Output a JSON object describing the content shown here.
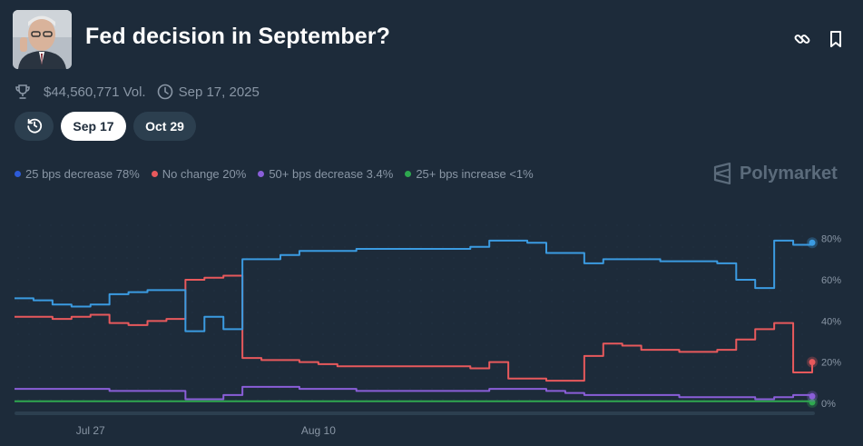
{
  "market": {
    "title": "Fed decision in September?",
    "volume": "$44,560,771 Vol.",
    "end_date": "Sep 17, 2025"
  },
  "header_icons": {
    "link": "link-icon",
    "bookmark": "bookmark-icon"
  },
  "date_chips": {
    "selected": "Sep 17",
    "other": "Oct 29"
  },
  "brand": "Polymarket",
  "colors": {
    "background": "#1d2b3a",
    "s25dec": "#3b9be1",
    "nochange": "#e8595c",
    "s50dec": "#8a5ed8",
    "s25inc": "#2ea84f",
    "legend_25dec_dot": "#2d5bd8"
  },
  "legend": [
    {
      "name": "25 bps decrease",
      "value": "78%",
      "color": "#2d5bd8"
    },
    {
      "name": "No change",
      "value": "20%",
      "color": "#e8595c"
    },
    {
      "name": "50+ bps decrease",
      "value": "3.4%",
      "color": "#8a5ed8"
    },
    {
      "name": "25+ bps increase",
      "value": "<1%",
      "color": "#2ea84f"
    }
  ],
  "chart_data": {
    "type": "line",
    "x_ticks": [
      "Jul 27",
      "Aug 10"
    ],
    "y_ticks": [
      "0%",
      "20%",
      "40%",
      "60%",
      "80%"
    ],
    "ylim": [
      0,
      90
    ],
    "grid": false,
    "legend_position": "top-left",
    "x": [
      "Jul 20",
      "Jul 22",
      "Jul 24",
      "Jul 26",
      "Jul 27",
      "Jul 28",
      "Jul 29",
      "Jul 30",
      "Jul 31",
      "Aug 1",
      "Aug 2",
      "Aug 3",
      "Aug 4",
      "Aug 5",
      "Aug 6",
      "Aug 8",
      "Aug 10",
      "Aug 12",
      "Aug 14",
      "Aug 15",
      "Aug 16",
      "Aug 17",
      "Aug 18",
      "Aug 20",
      "Aug 22",
      "Aug 24",
      "Aug 26",
      "Aug 28",
      "Aug 29",
      "Aug 30",
      "Aug 31",
      "Sep 1",
      "Sep 2",
      "Sep 3",
      "Sep 4",
      "Sep 5",
      "Sep 6",
      "Sep 7",
      "Sep 8",
      "Sep 9",
      "Sep 10",
      "Sep 11",
      "Sep 12"
    ],
    "series": [
      {
        "name": "25 bps decrease",
        "color": "#3b9be1",
        "values": [
          51,
          50,
          48,
          47,
          48,
          53,
          54,
          55,
          55,
          35,
          42,
          36,
          70,
          70,
          72,
          74,
          74,
          74,
          75,
          75,
          75,
          75,
          75,
          75,
          76,
          79,
          79,
          78,
          73,
          73,
          68,
          70,
          70,
          70,
          69,
          69,
          69,
          68,
          60,
          56,
          79,
          77,
          78
        ]
      },
      {
        "name": "No change",
        "color": "#e8595c",
        "values": [
          42,
          42,
          41,
          42,
          43,
          39,
          38,
          40,
          41,
          60,
          61,
          62,
          22,
          21,
          21,
          20,
          19,
          18,
          18,
          18,
          18,
          18,
          18,
          18,
          17,
          20,
          12,
          12,
          11,
          11,
          23,
          29,
          28,
          26,
          26,
          25,
          25,
          26,
          31,
          36,
          39,
          15,
          20
        ]
      },
      {
        "name": "50+ bps decrease",
        "color": "#8a5ed8",
        "values": [
          7,
          7,
          7,
          7,
          7,
          6,
          6,
          6,
          6,
          2,
          2,
          4,
          8,
          8,
          8,
          7,
          7,
          7,
          6,
          6,
          6,
          6,
          6,
          6,
          6,
          7,
          7,
          7,
          6,
          5,
          4,
          4,
          4,
          4,
          4,
          3,
          3,
          3,
          3,
          2,
          3,
          4,
          3.4
        ]
      },
      {
        "name": "25+ bps increase",
        "color": "#2ea84f",
        "values": [
          1,
          1,
          1,
          1,
          1,
          1,
          1,
          1,
          1,
          1,
          1,
          1,
          1,
          1,
          1,
          1,
          1,
          1,
          1,
          1,
          1,
          1,
          1,
          1,
          1,
          1,
          1,
          1,
          1,
          1,
          1,
          1,
          1,
          1,
          1,
          1,
          1,
          1,
          1,
          1,
          1,
          1,
          0.5
        ]
      }
    ]
  }
}
